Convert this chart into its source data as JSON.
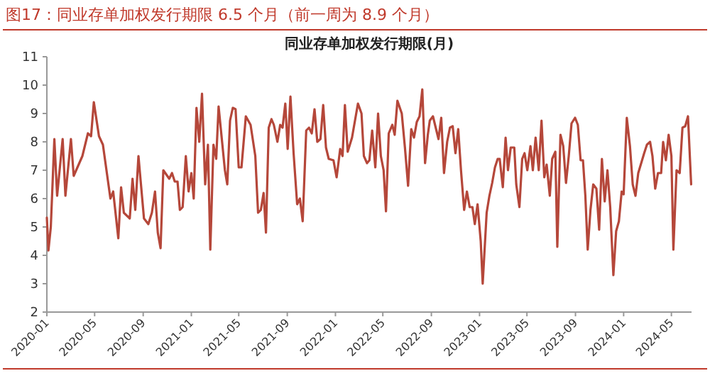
{
  "chart_data": {
    "type": "line",
    "title": "图17：同业存单加权发行期限 6.5 个月（前一周为 8.9 个月）",
    "subtitle": "同业存单加权发行期限(月)",
    "x": [
      "2020-01-01",
      "2020-01-05",
      "2020-01-11",
      "2020-01-20",
      "2020-01-27",
      "2020-02-10",
      "2020-02-17",
      "2020-03-02",
      "2020-03-09",
      "2020-03-31",
      "2020-04-14",
      "2020-04-22",
      "2020-04-29",
      "2020-05-12",
      "2020-05-22",
      "2020-06-10",
      "2020-06-17",
      "2020-06-30",
      "2020-07-07",
      "2020-07-14",
      "2020-07-29",
      "2020-08-05",
      "2020-08-12",
      "2020-08-20",
      "2020-09-03",
      "2020-09-14",
      "2020-09-23",
      "2020-10-01",
      "2020-10-08",
      "2020-10-15",
      "2020-10-22",
      "2020-11-06",
      "2020-11-13",
      "2020-11-20",
      "2020-11-27",
      "2020-12-03",
      "2020-12-10",
      "2020-12-18",
      "2020-12-25",
      "2021-01-01",
      "2021-01-07",
      "2021-01-14",
      "2021-01-21",
      "2021-01-28",
      "2021-02-05",
      "2021-02-12",
      "2021-02-18",
      "2021-02-26",
      "2021-03-05",
      "2021-03-11",
      "2021-03-27",
      "2021-04-02",
      "2021-04-09",
      "2021-04-16",
      "2021-04-23",
      "2021-05-01",
      "2021-05-08",
      "2021-05-19",
      "2021-05-31",
      "2021-06-12",
      "2021-06-19",
      "2021-06-26",
      "2021-07-03",
      "2021-07-09",
      "2021-07-16",
      "2021-07-23",
      "2021-07-29",
      "2021-08-07",
      "2021-08-14",
      "2021-08-20",
      "2021-08-27",
      "2021-09-02",
      "2021-09-09",
      "2021-09-17",
      "2021-09-26",
      "2021-10-03",
      "2021-10-10",
      "2021-10-19",
      "2021-10-26",
      "2021-11-02",
      "2021-11-09",
      "2021-11-16",
      "2021-11-24",
      "2021-12-01",
      "2021-12-08",
      "2021-12-15",
      "2021-12-27",
      "2022-01-04",
      "2022-01-13",
      "2022-01-19",
      "2022-01-25",
      "2022-02-01",
      "2022-02-12",
      "2022-02-27",
      "2022-03-08",
      "2022-03-14",
      "2022-03-22",
      "2022-03-28",
      "2022-04-04",
      "2022-04-12",
      "2022-04-19",
      "2022-04-26",
      "2022-05-03",
      "2022-05-09",
      "2022-05-16",
      "2022-05-25",
      "2022-05-31",
      "2022-06-07",
      "2022-06-18",
      "2022-06-26",
      "2022-07-04",
      "2022-07-12",
      "2022-07-19",
      "2022-07-26",
      "2022-08-02",
      "2022-08-09",
      "2022-08-16",
      "2022-08-23",
      "2022-08-28",
      "2022-09-05",
      "2022-09-19",
      "2022-09-26",
      "2022-10-03",
      "2022-10-11",
      "2022-10-18",
      "2022-10-25",
      "2022-11-01",
      "2022-11-08",
      "2022-11-15",
      "2022-11-23",
      "2022-11-30",
      "2022-12-07",
      "2022-12-14",
      "2022-12-20",
      "2022-12-27",
      "2023-01-04",
      "2023-01-09",
      "2023-01-19",
      "2023-01-26",
      "2023-02-02",
      "2023-02-09",
      "2023-02-16",
      "2023-02-21",
      "2023-03-01",
      "2023-03-08",
      "2023-03-14",
      "2023-03-21",
      "2023-03-30",
      "2023-04-04",
      "2023-04-12",
      "2023-04-19",
      "2023-04-25",
      "2023-05-02",
      "2023-05-10",
      "2023-05-16",
      "2023-05-23",
      "2023-05-31",
      "2023-06-07",
      "2023-06-14",
      "2023-06-20",
      "2023-06-28",
      "2023-07-04",
      "2023-07-12",
      "2023-07-17",
      "2023-07-25",
      "2023-08-01",
      "2023-08-08",
      "2023-08-15",
      "2023-08-22",
      "2023-08-31",
      "2023-09-07",
      "2023-09-14",
      "2023-09-20",
      "2023-09-26",
      "2023-10-02",
      "2023-10-09",
      "2023-10-16",
      "2023-10-24",
      "2023-10-31",
      "2023-11-07",
      "2023-11-14",
      "2023-11-21",
      "2023-11-28",
      "2023-12-06",
      "2023-12-13",
      "2023-12-20",
      "2023-12-27",
      "2024-01-01",
      "2024-01-09",
      "2024-01-17",
      "2024-01-24",
      "2024-01-31",
      "2024-02-07",
      "2024-02-22",
      "2024-02-29",
      "2024-03-08",
      "2024-03-14",
      "2024-03-21",
      "2024-03-28",
      "2024-04-05",
      "2024-04-10",
      "2024-04-17",
      "2024-04-24",
      "2024-05-01",
      "2024-05-06",
      "2024-05-14",
      "2024-05-22",
      "2024-05-29",
      "2024-06-05",
      "2024-06-12",
      "2024-06-20"
    ],
    "series": [
      {
        "color": "#b5473a",
        "values": [
          5.33,
          4.17,
          5.0,
          8.1,
          6.1,
          8.1,
          6.1,
          8.1,
          6.8,
          7.5,
          8.3,
          8.2,
          9.4,
          8.2,
          7.9,
          6.0,
          6.25,
          4.6,
          6.4,
          5.5,
          5.3,
          6.7,
          5.6,
          7.5,
          5.3,
          5.1,
          5.5,
          6.25,
          4.8,
          4.25,
          7.0,
          6.7,
          6.9,
          6.6,
          6.6,
          5.6,
          5.7,
          7.5,
          6.25,
          6.9,
          6.0,
          9.2,
          8.0,
          9.7,
          6.5,
          7.9,
          4.2,
          7.9,
          7.4,
          9.25,
          7.0,
          6.5,
          8.75,
          9.2,
          9.15,
          7.1,
          7.1,
          8.9,
          8.6,
          7.5,
          5.5,
          5.6,
          6.2,
          4.8,
          8.5,
          8.8,
          8.6,
          8.0,
          8.6,
          8.5,
          9.35,
          7.75,
          9.6,
          7.6,
          5.8,
          6.0,
          5.2,
          8.4,
          8.5,
          8.3,
          9.15,
          8.0,
          8.1,
          9.3,
          7.8,
          7.4,
          7.35,
          6.75,
          7.75,
          7.5,
          9.3,
          7.65,
          8.15,
          9.35,
          9.0,
          7.5,
          7.25,
          7.35,
          8.4,
          7.1,
          9.0,
          7.5,
          7.0,
          5.55,
          8.3,
          8.6,
          8.25,
          9.45,
          9.0,
          7.8,
          6.45,
          8.45,
          8.15,
          8.7,
          8.9,
          9.85,
          7.25,
          8.25,
          8.75,
          8.9,
          8.1,
          8.85,
          6.9,
          8.0,
          8.5,
          8.55,
          7.6,
          8.45,
          7.0,
          5.6,
          6.25,
          5.7,
          5.7,
          5.1,
          5.8,
          4.5,
          3.0,
          5.5,
          6.1,
          6.55,
          7.1,
          7.4,
          7.4,
          6.4,
          8.15,
          7.0,
          7.8,
          7.8,
          6.5,
          5.7,
          7.4,
          7.6,
          7.0,
          7.85,
          7.0,
          8.15,
          7.0,
          8.75,
          6.75,
          7.2,
          6.1,
          7.4,
          7.65,
          4.3,
          8.25,
          7.85,
          6.55,
          7.5,
          8.65,
          8.85,
          8.6,
          7.35,
          7.35,
          6.1,
          4.2,
          5.6,
          6.5,
          6.35,
          4.9,
          7.4,
          5.9,
          7.0,
          5.7,
          3.3,
          4.85,
          5.2,
          6.25,
          6.15,
          8.85,
          7.85,
          6.5,
          6.1,
          6.9,
          7.6,
          7.9,
          8.0,
          7.5,
          6.35,
          6.9,
          6.9,
          8.0,
          7.35,
          8.25,
          7.5,
          4.2,
          7.0,
          6.9,
          8.5,
          8.55,
          8.9,
          6.5
        ]
      }
    ],
    "xlim": [
      "2020-01-01",
      "2024-06-21"
    ],
    "xticks": [
      {
        "value": "2020-01-01",
        "label": "2020-01"
      },
      {
        "value": "2020-05-01",
        "label": "2020-05"
      },
      {
        "value": "2020-09-01",
        "label": "2020-09"
      },
      {
        "value": "2021-01-01",
        "label": "2021-01"
      },
      {
        "value": "2021-05-01",
        "label": "2021-05"
      },
      {
        "value": "2021-09-01",
        "label": "2021-09"
      },
      {
        "value": "2022-01-01",
        "label": "2022-01"
      },
      {
        "value": "2022-05-01",
        "label": "2022-05"
      },
      {
        "value": "2022-09-01",
        "label": "2022-09"
      },
      {
        "value": "2023-01-01",
        "label": "2023-01"
      },
      {
        "value": "2023-05-01",
        "label": "2023-05"
      },
      {
        "value": "2023-09-01",
        "label": "2023-09"
      },
      {
        "value": "2024-01-01",
        "label": "2024-01"
      },
      {
        "value": "2024-05-01",
        "label": "2024-05"
      }
    ],
    "ylim": [
      2,
      11
    ],
    "yticks": [
      2,
      3,
      4,
      5,
      6,
      7,
      8,
      9,
      10,
      11
    ],
    "grid": false,
    "line_style": "solid",
    "marker": "none"
  }
}
